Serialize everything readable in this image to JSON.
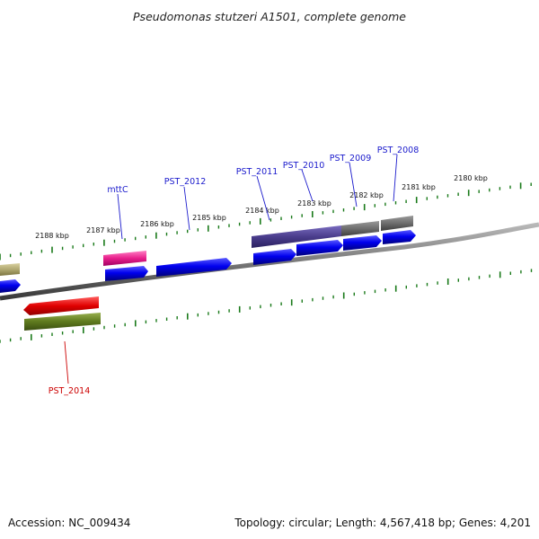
{
  "title": "Pseudomonas stutzeri A1501, complete genome",
  "footer": {
    "accession": "Accession: NC_009434",
    "topology": "Topology: circular; Length: 4,567,418 bp; Genes: 4,201"
  },
  "colors": {
    "backbone": "#7a7a7a",
    "tick": "#1a7a1a",
    "gene_label_forward": "#1a1acc",
    "gene_label_reverse": "#cc0000",
    "cds": "#0000ee",
    "gene_dark": "#4a3d8c",
    "gene_grey": "#6e6e6e",
    "gene_pink": "#e8208c",
    "gene_khaki": "#b0a870",
    "gene_red": "#e00000",
    "gene_olive": "#5e7a1e"
  },
  "scale_labels": [
    "2188 kbp",
    "2187 kbp",
    "2186 kbp",
    "2185 kbp",
    "2184 kbp",
    "2183 kbp",
    "2182 kbp",
    "2181 kbp",
    "2180 kbp"
  ],
  "gene_labels": [
    {
      "text": "mttC",
      "strand": "forward"
    },
    {
      "text": "PST_2012",
      "strand": "forward"
    },
    {
      "text": "PST_2011",
      "strand": "forward"
    },
    {
      "text": "PST_2010",
      "strand": "forward"
    },
    {
      "text": "PST_2009",
      "strand": "forward"
    },
    {
      "text": "PST_2008",
      "strand": "forward"
    },
    {
      "text": "PST_2014",
      "strand": "reverse"
    }
  ]
}
